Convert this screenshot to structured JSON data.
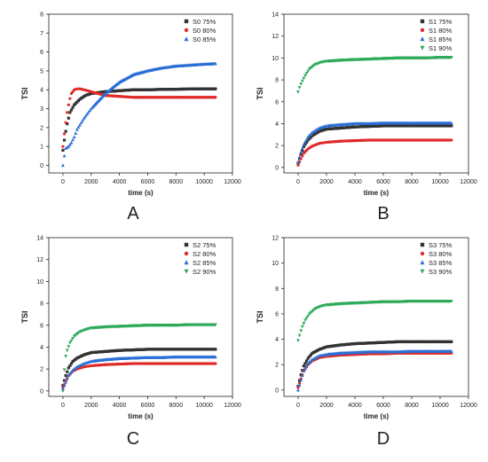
{
  "chart_data": [
    {
      "type": "scatter",
      "panel_label": "A",
      "xlabel": "time (s)",
      "ylabel": "TSI",
      "xlim": [
        -1000,
        12000
      ],
      "ylim": [
        -0.4,
        8
      ],
      "xticks": [
        0,
        2000,
        4000,
        6000,
        8000,
        10000,
        12000
      ],
      "yticks": [
        0,
        1,
        2,
        3,
        4,
        5,
        6,
        7,
        8
      ],
      "legend_position": "top-right",
      "grid": false,
      "series": [
        {
          "name": "S0 75%",
          "color": "#333333",
          "marker": "square",
          "x": [
            0,
            150,
            300,
            500,
            800,
            1200,
            1600,
            2000,
            2500,
            3000,
            4000,
            5000,
            6000,
            7000,
            8000,
            9000,
            10000,
            10800
          ],
          "y": [
            0.8,
            1.6,
            2.2,
            2.8,
            3.2,
            3.5,
            3.7,
            3.8,
            3.85,
            3.9,
            3.95,
            4.0,
            4.0,
            4.02,
            4.03,
            4.04,
            4.05,
            4.05
          ]
        },
        {
          "name": "S0 80%",
          "color": "#e02a2a",
          "marker": "circle",
          "x": [
            0,
            150,
            300,
            450,
            600,
            800,
            1000,
            1200,
            1500,
            2000,
            2500,
            3000,
            4000,
            5000,
            6000,
            7000,
            8000,
            9000,
            10000,
            10800
          ],
          "y": [
            1.0,
            2.0,
            2.8,
            3.4,
            3.8,
            4.0,
            4.05,
            4.05,
            4.0,
            3.9,
            3.8,
            3.7,
            3.65,
            3.6,
            3.6,
            3.6,
            3.6,
            3.6,
            3.6,
            3.6
          ]
        },
        {
          "name": "S0 85%",
          "color": "#2a6fd6",
          "marker": "triangle",
          "x": [
            0,
            100,
            200,
            400,
            600,
            800,
            1000,
            1500,
            2000,
            2500,
            3000,
            4000,
            5000,
            6000,
            7000,
            8000,
            9000,
            10000,
            10800
          ],
          "y": [
            0.0,
            0.5,
            0.9,
            1.0,
            1.2,
            1.5,
            1.9,
            2.5,
            3.0,
            3.4,
            3.8,
            4.4,
            4.8,
            5.0,
            5.15,
            5.25,
            5.3,
            5.35,
            5.38
          ]
        }
      ]
    },
    {
      "type": "scatter",
      "panel_label": "B",
      "xlabel": "time (s)",
      "ylabel": "TSI",
      "xlim": [
        -1000,
        12000
      ],
      "ylim": [
        -0.5,
        14
      ],
      "xticks": [
        0,
        2000,
        4000,
        6000,
        8000,
        10000,
        12000
      ],
      "yticks": [
        0,
        2,
        4,
        6,
        8,
        10,
        12,
        14
      ],
      "legend_position": "top-right",
      "grid": false,
      "series": [
        {
          "name": "S1 75%",
          "color": "#333333",
          "marker": "square",
          "x": [
            0,
            200,
            400,
            700,
            1000,
            1500,
            2000,
            3000,
            4000,
            5000,
            6000,
            7000,
            8000,
            9000,
            10000,
            10800
          ],
          "y": [
            0.4,
            1.2,
            1.9,
            2.5,
            2.9,
            3.3,
            3.5,
            3.6,
            3.7,
            3.75,
            3.8,
            3.8,
            3.8,
            3.8,
            3.8,
            3.8
          ]
        },
        {
          "name": "S1 80%",
          "color": "#e02a2a",
          "marker": "circle",
          "x": [
            0,
            200,
            400,
            700,
            1000,
            1500,
            2000,
            3000,
            4000,
            5000,
            6000,
            7000,
            8000,
            9000,
            10000,
            10800
          ],
          "y": [
            0.2,
            0.8,
            1.3,
            1.7,
            1.95,
            2.2,
            2.3,
            2.4,
            2.45,
            2.5,
            2.5,
            2.5,
            2.5,
            2.5,
            2.5,
            2.5
          ]
        },
        {
          "name": "S1 85%",
          "color": "#2a6fd6",
          "marker": "triangle",
          "x": [
            0,
            200,
            400,
            700,
            1000,
            1500,
            2000,
            3000,
            4000,
            5000,
            6000,
            7000,
            8000,
            9000,
            10000,
            10800
          ],
          "y": [
            0.5,
            1.4,
            2.1,
            2.8,
            3.2,
            3.6,
            3.8,
            3.9,
            4.0,
            4.0,
            4.05,
            4.05,
            4.05,
            4.05,
            4.05,
            4.05
          ]
        },
        {
          "name": "S1 90%",
          "color": "#2eaa5a",
          "marker": "triangle-down",
          "x": [
            0,
            150,
            300,
            500,
            800,
            1200,
            1600,
            2000,
            3000,
            4000,
            5000,
            6000,
            7000,
            8000,
            9000,
            10000,
            10800
          ],
          "y": [
            6.9,
            7.5,
            7.9,
            8.4,
            9.0,
            9.4,
            9.6,
            9.7,
            9.8,
            9.85,
            9.9,
            9.95,
            10.0,
            10.0,
            10.0,
            10.05,
            10.05
          ]
        }
      ]
    },
    {
      "type": "scatter",
      "panel_label": "C",
      "xlabel": "time (s)",
      "ylabel": "TSI",
      "xlim": [
        -1000,
        12000
      ],
      "ylim": [
        -0.5,
        14
      ],
      "xticks": [
        0,
        2000,
        4000,
        6000,
        8000,
        10000,
        12000
      ],
      "yticks": [
        0,
        2,
        4,
        6,
        8,
        10,
        12,
        14
      ],
      "legend_position": "top-right",
      "grid": false,
      "series": [
        {
          "name": "S2 75%",
          "color": "#333333",
          "marker": "square",
          "x": [
            0,
            200,
            400,
            700,
            1000,
            1500,
            2000,
            3000,
            4000,
            5000,
            6000,
            7000,
            8000,
            9000,
            10000,
            10800
          ],
          "y": [
            0.5,
            1.4,
            2.1,
            2.7,
            3.0,
            3.3,
            3.5,
            3.6,
            3.7,
            3.75,
            3.8,
            3.8,
            3.8,
            3.8,
            3.8,
            3.8
          ]
        },
        {
          "name": "S2 80%",
          "color": "#e02a2a",
          "marker": "circle",
          "x": [
            0,
            200,
            400,
            700,
            1000,
            1500,
            2000,
            3000,
            4000,
            5000,
            6000,
            7000,
            8000,
            9000,
            10000,
            10800
          ],
          "y": [
            0.3,
            0.9,
            1.4,
            1.8,
            2.0,
            2.2,
            2.3,
            2.4,
            2.45,
            2.5,
            2.5,
            2.5,
            2.5,
            2.5,
            2.5,
            2.5
          ]
        },
        {
          "name": "S2 85%",
          "color": "#2a6fd6",
          "marker": "triangle",
          "x": [
            0,
            200,
            400,
            700,
            1000,
            1500,
            2000,
            3000,
            4000,
            5000,
            6000,
            7000,
            8000,
            9000,
            10000,
            10800
          ],
          "y": [
            0.2,
            0.8,
            1.4,
            1.9,
            2.2,
            2.5,
            2.7,
            2.85,
            2.95,
            3.0,
            3.05,
            3.05,
            3.1,
            3.1,
            3.1,
            3.1
          ]
        },
        {
          "name": "S2 90%",
          "color": "#2eaa5a",
          "marker": "triangle-down",
          "x": [
            0,
            150,
            300,
            500,
            800,
            1200,
            1600,
            2000,
            3000,
            4000,
            5000,
            6000,
            7000,
            8000,
            9000,
            10000,
            10800
          ],
          "y": [
            0.0,
            2.9,
            3.7,
            4.4,
            5.0,
            5.4,
            5.6,
            5.75,
            5.85,
            5.9,
            5.95,
            6.0,
            6.0,
            6.0,
            6.05,
            6.05,
            6.05
          ]
        }
      ]
    },
    {
      "type": "scatter",
      "panel_label": "D",
      "xlabel": "time (s)",
      "ylabel": "TSI",
      "xlim": [
        -1000,
        12000
      ],
      "ylim": [
        -0.5,
        12
      ],
      "xticks": [
        0,
        2000,
        4000,
        6000,
        8000,
        10000,
        12000
      ],
      "yticks": [
        0,
        2,
        4,
        6,
        8,
        10,
        12
      ],
      "legend_position": "top-right",
      "grid": false,
      "series": [
        {
          "name": "S3 75%",
          "color": "#333333",
          "marker": "square",
          "x": [
            0,
            200,
            400,
            700,
            1000,
            1500,
            2000,
            3000,
            4000,
            5000,
            6000,
            7000,
            8000,
            9000,
            10000,
            10800
          ],
          "y": [
            0.3,
            1.2,
            1.9,
            2.5,
            2.9,
            3.2,
            3.4,
            3.55,
            3.65,
            3.7,
            3.75,
            3.8,
            3.8,
            3.8,
            3.8,
            3.8
          ]
        },
        {
          "name": "S3 80%",
          "color": "#e02a2a",
          "marker": "circle",
          "x": [
            0,
            200,
            400,
            700,
            1000,
            1500,
            2000,
            3000,
            4000,
            5000,
            6000,
            7000,
            8000,
            9000,
            10000,
            10800
          ],
          "y": [
            0.2,
            0.9,
            1.5,
            2.0,
            2.3,
            2.55,
            2.65,
            2.75,
            2.8,
            2.85,
            2.85,
            2.9,
            2.9,
            2.9,
            2.9,
            2.9
          ]
        },
        {
          "name": "S3 85%",
          "color": "#2a6fd6",
          "marker": "triangle",
          "x": [
            0,
            200,
            400,
            700,
            1000,
            1500,
            2000,
            3000,
            4000,
            5000,
            6000,
            7000,
            8000,
            9000,
            10000,
            10800
          ],
          "y": [
            0.0,
            0.8,
            1.5,
            2.1,
            2.4,
            2.7,
            2.8,
            2.9,
            2.95,
            3.0,
            3.0,
            3.0,
            3.05,
            3.05,
            3.05,
            3.05
          ]
        },
        {
          "name": "S3 90%",
          "color": "#2eaa5a",
          "marker": "triangle-down",
          "x": [
            0,
            150,
            300,
            500,
            800,
            1200,
            1600,
            2000,
            3000,
            4000,
            5000,
            6000,
            7000,
            8000,
            9000,
            10000,
            10800
          ],
          "y": [
            3.9,
            4.5,
            5.0,
            5.5,
            6.0,
            6.4,
            6.6,
            6.7,
            6.8,
            6.85,
            6.9,
            6.95,
            6.95,
            7.0,
            7.0,
            7.0,
            7.0
          ]
        }
      ]
    }
  ]
}
